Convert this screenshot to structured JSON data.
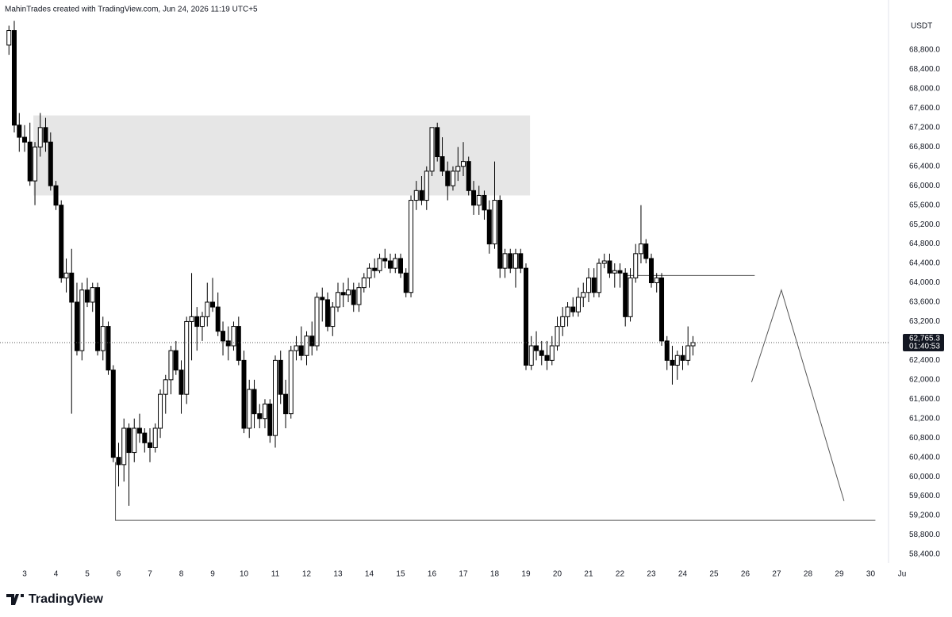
{
  "header": {
    "credit": "MahinTrades created with TradingView.com, Jun 24, 2026 11:19 UTC+5"
  },
  "footer": {
    "logo": "TradingView"
  },
  "chart_data": {
    "type": "candlestick",
    "unit": "USDT",
    "up_color": "#ffffff",
    "down_color": "#000000",
    "outline_color": "#000000",
    "xlim": [
      2.215,
      30.57
    ],
    "ylim": [
      58220,
      69830
    ],
    "xticks": [
      3,
      4,
      5,
      6,
      7,
      8,
      9,
      10,
      11,
      12,
      13,
      14,
      15,
      16,
      17,
      18,
      19,
      20,
      21,
      22,
      23,
      24,
      25,
      26,
      27,
      28,
      29,
      30,
      {
        "value": 31,
        "label": "Ju"
      }
    ],
    "yticks": [
      {
        "value": 58400,
        "label": "58,400.0"
      },
      {
        "value": 58800,
        "label": "58,800.0"
      },
      {
        "value": 59200,
        "label": "59,200.0"
      },
      {
        "value": 59600,
        "label": "59,600.0"
      },
      {
        "value": 60000,
        "label": "60,000.0"
      },
      {
        "value": 60400,
        "label": "60,400.0"
      },
      {
        "value": 60800,
        "label": "60,800.0"
      },
      {
        "value": 61200,
        "label": "61,200.0"
      },
      {
        "value": 61600,
        "label": "61,600.0"
      },
      {
        "value": 62000,
        "label": "62,000.0"
      },
      {
        "value": 62400,
        "label": "62,400.0"
      },
      {
        "value": 62800,
        "label": "62,800.0"
      },
      {
        "value": 63200,
        "label": "63,200.0"
      },
      {
        "value": 63600,
        "label": "63,600.0"
      },
      {
        "value": 64000,
        "label": "64,000.0"
      },
      {
        "value": 64400,
        "label": "64,400.0"
      },
      {
        "value": 64800,
        "label": "64,800.0"
      },
      {
        "value": 65200,
        "label": "65,200.0"
      },
      {
        "value": 65600,
        "label": "65,600.0"
      },
      {
        "value": 66000,
        "label": "66,000.0"
      },
      {
        "value": 66400,
        "label": "66,400.0"
      },
      {
        "value": 66800,
        "label": "66,800.0"
      },
      {
        "value": 67200,
        "label": "67,200.0"
      },
      {
        "value": 67600,
        "label": "67,600.0"
      },
      {
        "value": 68000,
        "label": "68,000.0"
      },
      {
        "value": 68400,
        "label": "68,400.0"
      },
      {
        "value": 68800,
        "label": "68,800.0"
      }
    ],
    "x": [
      2.5,
      2.67,
      2.83,
      3,
      3.17,
      3.33,
      3.5,
      3.67,
      3.83,
      4,
      4.17,
      4.33,
      4.5,
      4.67,
      4.83,
      5,
      5.17,
      5.33,
      5.5,
      5.67,
      5.83,
      6,
      6.17,
      6.33,
      6.5,
      6.67,
      6.83,
      7,
      7.17,
      7.33,
      7.5,
      7.67,
      7.83,
      8,
      8.17,
      8.33,
      8.5,
      8.67,
      8.83,
      9,
      9.17,
      9.33,
      9.5,
      9.67,
      9.83,
      10,
      10.17,
      10.33,
      10.5,
      10.67,
      10.83,
      11,
      11.17,
      11.33,
      11.5,
      11.67,
      11.83,
      12,
      12.17,
      12.33,
      12.5,
      12.67,
      12.83,
      13,
      13.17,
      13.33,
      13.5,
      13.67,
      13.83,
      14,
      14.17,
      14.33,
      14.5,
      14.67,
      14.83,
      15,
      15.17,
      15.33,
      15.5,
      15.67,
      15.83,
      16,
      16.17,
      16.33,
      16.5,
      16.67,
      16.83,
      17,
      17.17,
      17.33,
      17.5,
      17.67,
      17.83,
      18,
      18.17,
      18.33,
      18.5,
      18.67,
      18.83,
      19,
      19.17,
      19.33,
      19.5,
      19.67,
      19.83,
      20,
      20.17,
      20.33,
      20.5,
      20.67,
      20.83,
      21,
      21.17,
      21.33,
      21.5,
      21.67,
      21.83,
      22,
      22.17,
      22.33,
      22.5,
      22.67,
      22.83,
      23,
      23.17,
      23.33,
      23.5,
      23.67,
      23.83,
      24,
      24.17,
      24.33
    ],
    "open": [
      68900,
      69200,
      67250,
      67000,
      66900,
      66100,
      66800,
      67200,
      66900,
      66000,
      65600,
      64100,
      64200,
      63600,
      62600,
      63850,
      63600,
      63900,
      62600,
      63100,
      62200,
      60400,
      60250,
      61000,
      60500,
      61000,
      60900,
      60700,
      60600,
      61000,
      61700,
      62000,
      62600,
      62200,
      61700,
      63200,
      63300,
      63100,
      63300,
      63600,
      63500,
      63000,
      62800,
      62700,
      63100,
      62400,
      61000,
      61800,
      61300,
      61200,
      61500,
      60850,
      62400,
      61700,
      61300,
      62600,
      62700,
      62500,
      62900,
      62700,
      63700,
      63650,
      63100,
      63500,
      63800,
      63750,
      63850,
      63550,
      63900,
      64100,
      64300,
      64250,
      64500,
      64450,
      64300,
      64500,
      64200,
      63800,
      65700,
      65900,
      65700,
      66300,
      67200,
      66600,
      66300,
      66000,
      66300,
      66400,
      66500,
      65900,
      65600,
      65800,
      65500,
      64800,
      65700,
      64300,
      64600,
      64300,
      64600,
      64300,
      62300,
      62700,
      62600,
      62500,
      62400,
      62700,
      63100,
      63300,
      63500,
      63400,
      63700,
      63800,
      64100,
      63800,
      64400,
      64450,
      64200,
      64250,
      64200,
      63300,
      64100,
      64600,
      64800,
      64500,
      64000,
      64100,
      62800,
      62400,
      62300,
      62500,
      62400,
      62700
    ],
    "high": [
      69300,
      69400,
      67500,
      67250,
      67300,
      66900,
      67500,
      67400,
      67100,
      66100,
      65700,
      64500,
      64700,
      64000,
      64000,
      64100,
      64000,
      64000,
      63300,
      63200,
      62300,
      60700,
      61200,
      61100,
      61200,
      61300,
      61000,
      61000,
      61100,
      61800,
      62100,
      62700,
      62800,
      62400,
      63300,
      64200,
      63500,
      63400,
      64000,
      64100,
      63800,
      63200,
      63100,
      63200,
      63300,
      62600,
      62000,
      62000,
      61500,
      61600,
      61600,
      62500,
      62600,
      62000,
      62700,
      62900,
      63100,
      63000,
      63200,
      63800,
      63900,
      63800,
      63600,
      64000,
      64000,
      64100,
      64000,
      64000,
      64200,
      64400,
      64500,
      64600,
      64700,
      64600,
      64600,
      64600,
      64300,
      65800,
      66100,
      66200,
      66400,
      67200,
      67300,
      67000,
      66500,
      66400,
      66800,
      66900,
      66600,
      66100,
      66000,
      65900,
      65700,
      66500,
      65800,
      64700,
      64700,
      64700,
      64700,
      64400,
      62900,
      63000,
      62800,
      62800,
      62900,
      63300,
      63500,
      63600,
      63700,
      63900,
      64000,
      64300,
      64300,
      64500,
      64600,
      64600,
      64400,
      64400,
      64300,
      64300,
      64800,
      65600,
      64900,
      64600,
      64200,
      64200,
      62900,
      62700,
      62600,
      62700,
      63100,
      62900
    ],
    "low": [
      68700,
      67100,
      66700,
      66700,
      66000,
      65600,
      66600,
      66700,
      65900,
      65500,
      64000,
      63800,
      61300,
      62500,
      62400,
      63500,
      63400,
      62500,
      62400,
      62100,
      60300,
      59800,
      59900,
      59400,
      60300,
      60700,
      60500,
      60300,
      60500,
      60800,
      61300,
      61700,
      62100,
      61300,
      61500,
      62400,
      62600,
      62800,
      63100,
      63400,
      62900,
      62500,
      62400,
      62600,
      62300,
      60900,
      60800,
      61000,
      61000,
      61000,
      60700,
      60600,
      61500,
      61000,
      61200,
      62400,
      62400,
      62300,
      62500,
      62600,
      63200,
      63000,
      62900,
      63400,
      63500,
      63600,
      63400,
      63400,
      63800,
      63900,
      64100,
      64200,
      64300,
      64200,
      64200,
      64100,
      63700,
      63700,
      65500,
      65600,
      65500,
      66200,
      66500,
      66200,
      65700,
      65900,
      66100,
      66200,
      65800,
      65400,
      65400,
      65300,
      64600,
      64700,
      64100,
      64100,
      64200,
      63900,
      64200,
      62200,
      62200,
      62400,
      62300,
      62200,
      62300,
      62600,
      62900,
      63100,
      63300,
      63300,
      63500,
      63600,
      63700,
      63700,
      64300,
      64100,
      63900,
      63900,
      63100,
      63200,
      64000,
      64400,
      64400,
      63900,
      63800,
      62700,
      62200,
      61900,
      62000,
      62200,
      62300,
      62500
    ],
    "close": [
      69200,
      67250,
      67000,
      66900,
      66100,
      66800,
      67200,
      66900,
      66000,
      65600,
      64100,
      64200,
      63600,
      62600,
      63850,
      63600,
      63900,
      62600,
      63100,
      62200,
      60400,
      60250,
      61000,
      60500,
      61000,
      60900,
      60700,
      60600,
      61000,
      61700,
      62000,
      62600,
      62200,
      61700,
      63200,
      63300,
      63100,
      63300,
      63600,
      63500,
      63000,
      62800,
      62700,
      63100,
      62400,
      61000,
      61800,
      61300,
      61200,
      61500,
      60850,
      62400,
      61700,
      61300,
      62600,
      62700,
      62500,
      62900,
      62700,
      63700,
      63650,
      63100,
      63500,
      63800,
      63750,
      63850,
      63550,
      63900,
      64100,
      64300,
      64250,
      64500,
      64450,
      64300,
      64500,
      64200,
      63800,
      65700,
      65900,
      65700,
      66300,
      67200,
      66600,
      66300,
      66000,
      66300,
      66400,
      66500,
      65900,
      65600,
      65800,
      65500,
      64800,
      65700,
      64300,
      64600,
      64300,
      64600,
      64300,
      62300,
      62700,
      62600,
      62500,
      62400,
      62700,
      63100,
      63300,
      63500,
      63400,
      63700,
      63800,
      64100,
      63800,
      64400,
      64450,
      64200,
      64250,
      64200,
      63300,
      64100,
      64600,
      64800,
      64500,
      64000,
      64100,
      62800,
      62400,
      62300,
      62500,
      62400,
      62700,
      62765.3
    ],
    "price_label": {
      "label": "62,765.3",
      "countdown": "01:40:53"
    },
    "zone": {
      "xlim": [
        3.28,
        19.13
      ],
      "ylim": [
        65800,
        67450
      ],
      "color": "#e6e6e6"
    },
    "drawings": [
      {
        "x": [
          5.9,
          5.9,
          30.15
        ],
        "y": [
          60300,
          59100,
          59100
        ]
      },
      {
        "x": [
          22.2,
          26.3
        ],
        "y": [
          64150,
          64150
        ]
      },
      {
        "x": [
          26.2,
          27.15,
          29.15
        ],
        "y": [
          61950,
          63850,
          59500
        ]
      }
    ]
  }
}
